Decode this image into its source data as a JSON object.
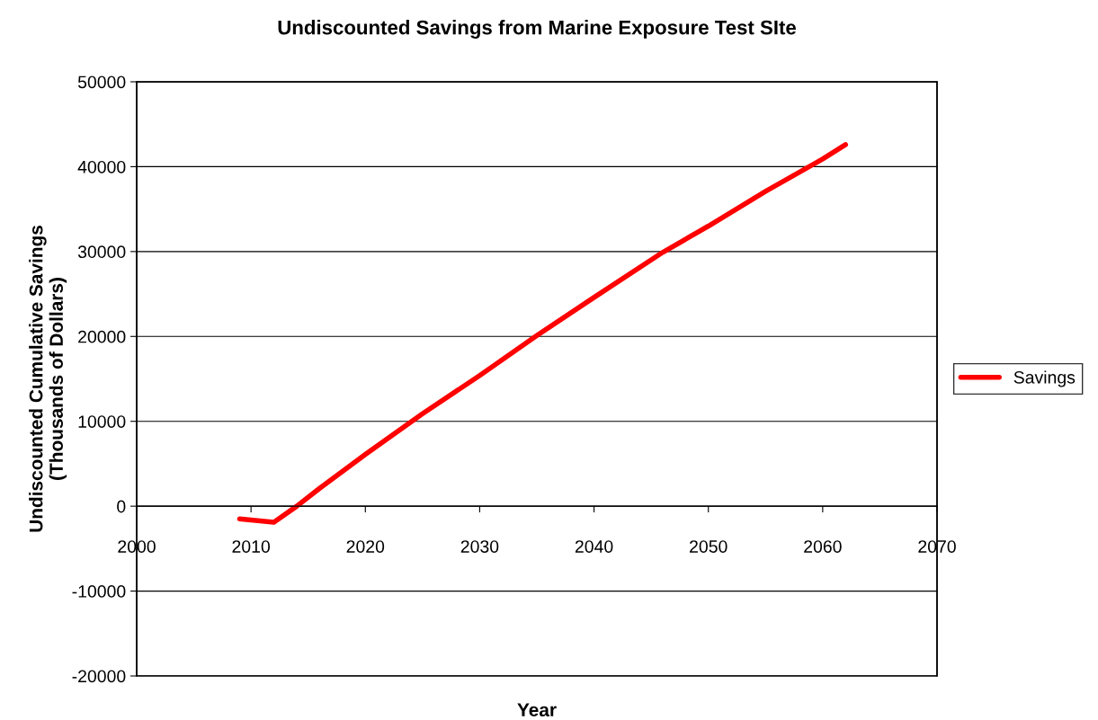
{
  "chart_data": {
    "type": "line",
    "title": "Undiscounted Savings from Marine Exposure Test SIte",
    "xlabel": "Year",
    "ylabel": "Undiscounted Cumulative Savings\n(Thousands of Dollars)",
    "series": [
      {
        "name": "Savings",
        "color": "#ff0000",
        "x": [
          2009,
          2012,
          2014,
          2016,
          2020,
          2025,
          2030,
          2035,
          2040,
          2046,
          2050,
          2055,
          2060,
          2062
        ],
        "values": [
          -1500,
          -1900,
          0,
          2100,
          6100,
          10900,
          15400,
          20100,
          24600,
          29900,
          33000,
          37100,
          40900,
          42600
        ]
      }
    ],
    "xlim": [
      2000,
      2070
    ],
    "xticks": [
      2000,
      2010,
      2020,
      2030,
      2040,
      2050,
      2060,
      2070
    ],
    "ylim": [
      -20000,
      50000
    ],
    "yticks": [
      -20000,
      -10000,
      0,
      10000,
      20000,
      30000,
      40000,
      50000
    ],
    "grid": "y",
    "legend": "right",
    "marker": "none",
    "line_style": "solid"
  }
}
